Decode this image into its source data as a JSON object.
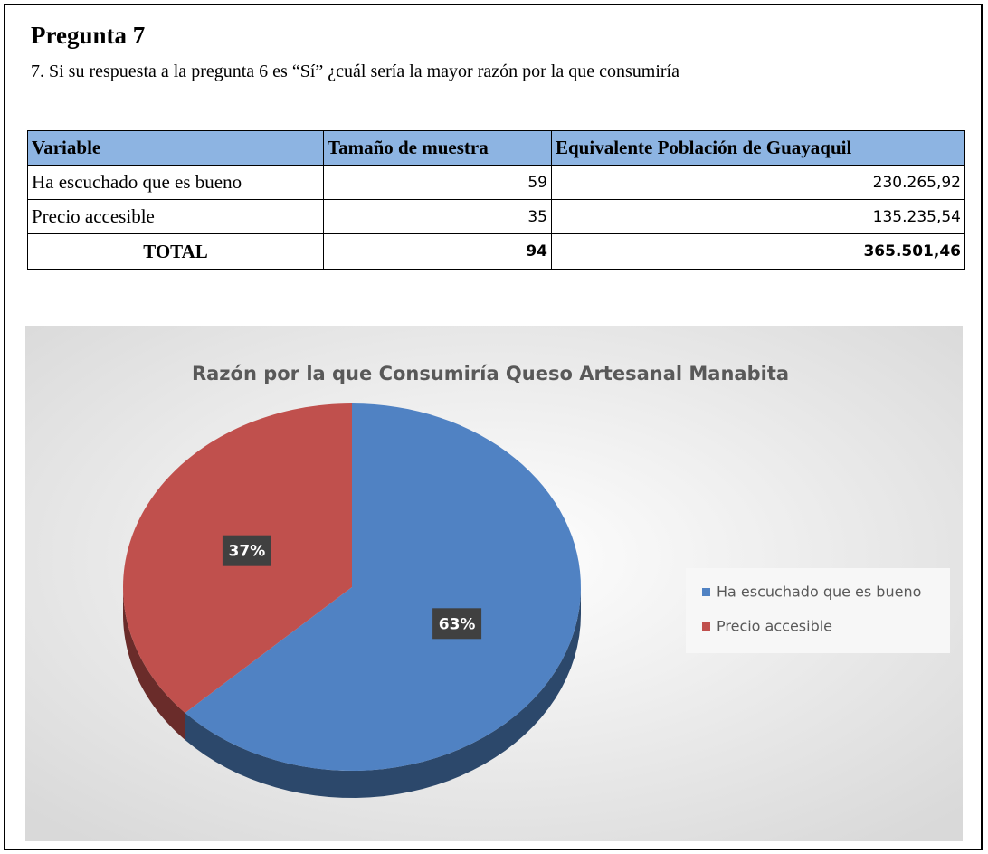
{
  "header": {
    "title": "Pregunta 7",
    "question": "7. Si su respuesta a la pregunta 6 es “Sí” ¿cuál sería la mayor razón por la que consumiría"
  },
  "table": {
    "columns": [
      "Variable",
      "Tamaño de muestra",
      "Equivalente Población de Guayaquil"
    ],
    "rows": [
      [
        "Ha escuchado que es bueno",
        "59",
        "230.265,92"
      ],
      [
        "Precio accesible",
        "35",
        "135.235,54"
      ],
      [
        "TOTAL",
        "94",
        "365.501,46"
      ]
    ]
  },
  "chart_data": {
    "type": "pie",
    "title": "Razón por la que Consumiría Queso Artesanal Manabita",
    "categories": [
      "Ha escuchado que es bueno",
      "Precio accesible"
    ],
    "values": [
      63,
      37
    ],
    "value_labels": [
      "63%",
      "37%"
    ],
    "colors": [
      "#5082c3",
      "#c0504d"
    ],
    "legend": "right"
  }
}
